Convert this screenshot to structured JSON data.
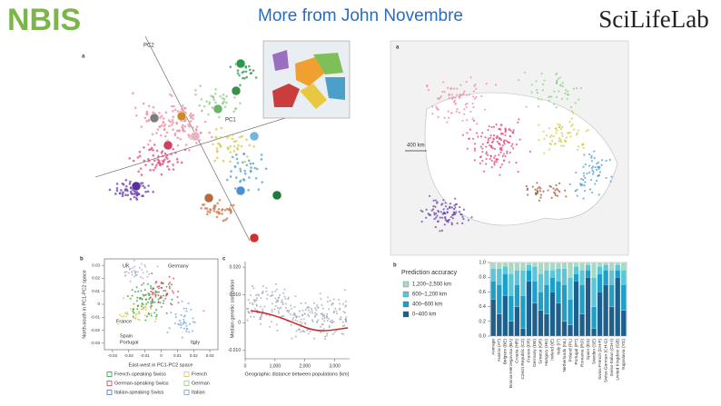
{
  "header": {
    "logo_left": "NBIS",
    "title": "More from John Novembre",
    "logo_right": "SciLifeLab"
  },
  "figure_left": {
    "panel_a": {
      "label": "a",
      "axis1": "PC1",
      "axis2": "PC2"
    },
    "panel_b": {
      "label": "b",
      "y_label": "North-south in PC1-PC2 space",
      "x_label": "East-west in PC1-PC2 space",
      "xlim": [
        -0.035,
        0.035
      ],
      "ylim": [
        -0.035,
        0.035
      ],
      "xticks": [
        -0.03,
        -0.02,
        -0.01,
        0,
        0.01,
        0.02,
        0.03
      ],
      "yticks": [
        -0.03,
        -0.02,
        -0.01,
        0,
        0.01,
        0.02,
        0.03
      ],
      "regions": [
        "UK",
        "Germany",
        "France",
        "Spain",
        "Portugal",
        "Italy"
      ],
      "legend": [
        "French-speaking Swiss",
        "French",
        "German-speaking Swiss",
        "German",
        "Italian-speaking Swiss",
        "Italian"
      ]
    },
    "panel_c": {
      "label": "c",
      "y_label": "Median genetic correlation",
      "x_label": "Geographic distance between populations (km)",
      "xlim": [
        0,
        3500
      ],
      "ylim": [
        -0.013,
        0.022
      ],
      "xticks": [
        0,
        {
          "value": 1000,
          "label": "1,000"
        },
        {
          "value": 2000,
          "label": "2,000"
        },
        {
          "value": 3000,
          "label": "3,000"
        }
      ],
      "yticks": [
        {
          "value": 0.02,
          "label": "0.020"
        },
        {
          "value": 0.01,
          "label": "0.010"
        },
        0,
        {
          "value": -0.01,
          "label": "-0.010"
        }
      ]
    }
  },
  "figure_right": {
    "panel_a": {
      "label": "a",
      "scale": "400 km"
    },
    "panel_b": {
      "label": "b",
      "legend_title": "Prediction accuracy"
    }
  },
  "chart_data": {
    "type": "bar",
    "stacked": true,
    "categories": [
      "Average",
      "Austria (AT)",
      "Belgium (BE)",
      "Bosnia-Herzegovina (BA)",
      "Croatia (HR)",
      "Czech Republic (CZ)",
      "France (FR)",
      "Germany (DE)",
      "Greece (GR)",
      "Hungary (HU)",
      "Ireland (IE)",
      "Italy (IT)",
      "Netherlands (NL)",
      "Poland (PL)",
      "Portugal (PT)",
      "Romania (RO)",
      "Spain (ES)",
      "Sweden (SE)",
      "Swiss-French (CH-F)",
      "Swiss-German (CH-G)",
      "Swiss-Italian (CH-I)",
      "United Kingdom (GB)",
      "Yugoslavia (YG)"
    ],
    "series": [
      {
        "name": "0–400 km",
        "color": "#1f5f8b",
        "values": [
          0.5,
          0.3,
          0.55,
          0.2,
          0.4,
          0.1,
          0.75,
          0.45,
          0.35,
          0.3,
          0.6,
          0.45,
          0.2,
          0.15,
          0.75,
          0.3,
          0.8,
          0.1,
          0.6,
          0.7,
          0.4,
          0.8,
          0.35
        ]
      },
      {
        "name": "400–600 km",
        "color": "#1e9fc7",
        "values": [
          0.25,
          0.4,
          0.3,
          0.35,
          0.3,
          0.45,
          0.15,
          0.3,
          0.25,
          0.4,
          0.2,
          0.3,
          0.5,
          0.35,
          0.1,
          0.4,
          0.1,
          0.3,
          0.25,
          0.2,
          0.3,
          0.1,
          0.35
        ]
      },
      {
        "name": "600–1,200 km",
        "color": "#5cc6d8",
        "values": [
          0.17,
          0.22,
          0.1,
          0.3,
          0.2,
          0.35,
          0.07,
          0.2,
          0.25,
          0.2,
          0.1,
          0.17,
          0.22,
          0.3,
          0.1,
          0.2,
          0.07,
          0.4,
          0.1,
          0.07,
          0.2,
          0.07,
          0.2
        ]
      },
      {
        "name": "1,200–2,500 km",
        "color": "#a9d9c4",
        "values": [
          0.08,
          0.08,
          0.05,
          0.15,
          0.1,
          0.1,
          0.03,
          0.05,
          0.15,
          0.1,
          0.1,
          0.08,
          0.08,
          0.2,
          0.05,
          0.1,
          0.03,
          0.2,
          0.05,
          0.03,
          0.1,
          0.03,
          0.1
        ]
      }
    ],
    "ylim": [
      0,
      1
    ],
    "yticks": [
      {
        "value": 0,
        "label": "0.0"
      },
      {
        "value": 0.2,
        "label": "0.2"
      },
      {
        "value": 0.4,
        "label": "0.4"
      },
      {
        "value": 0.6,
        "label": "0.6"
      },
      {
        "value": 0.8,
        "label": "0.8"
      },
      {
        "value": 1,
        "label": "1.0"
      }
    ]
  }
}
